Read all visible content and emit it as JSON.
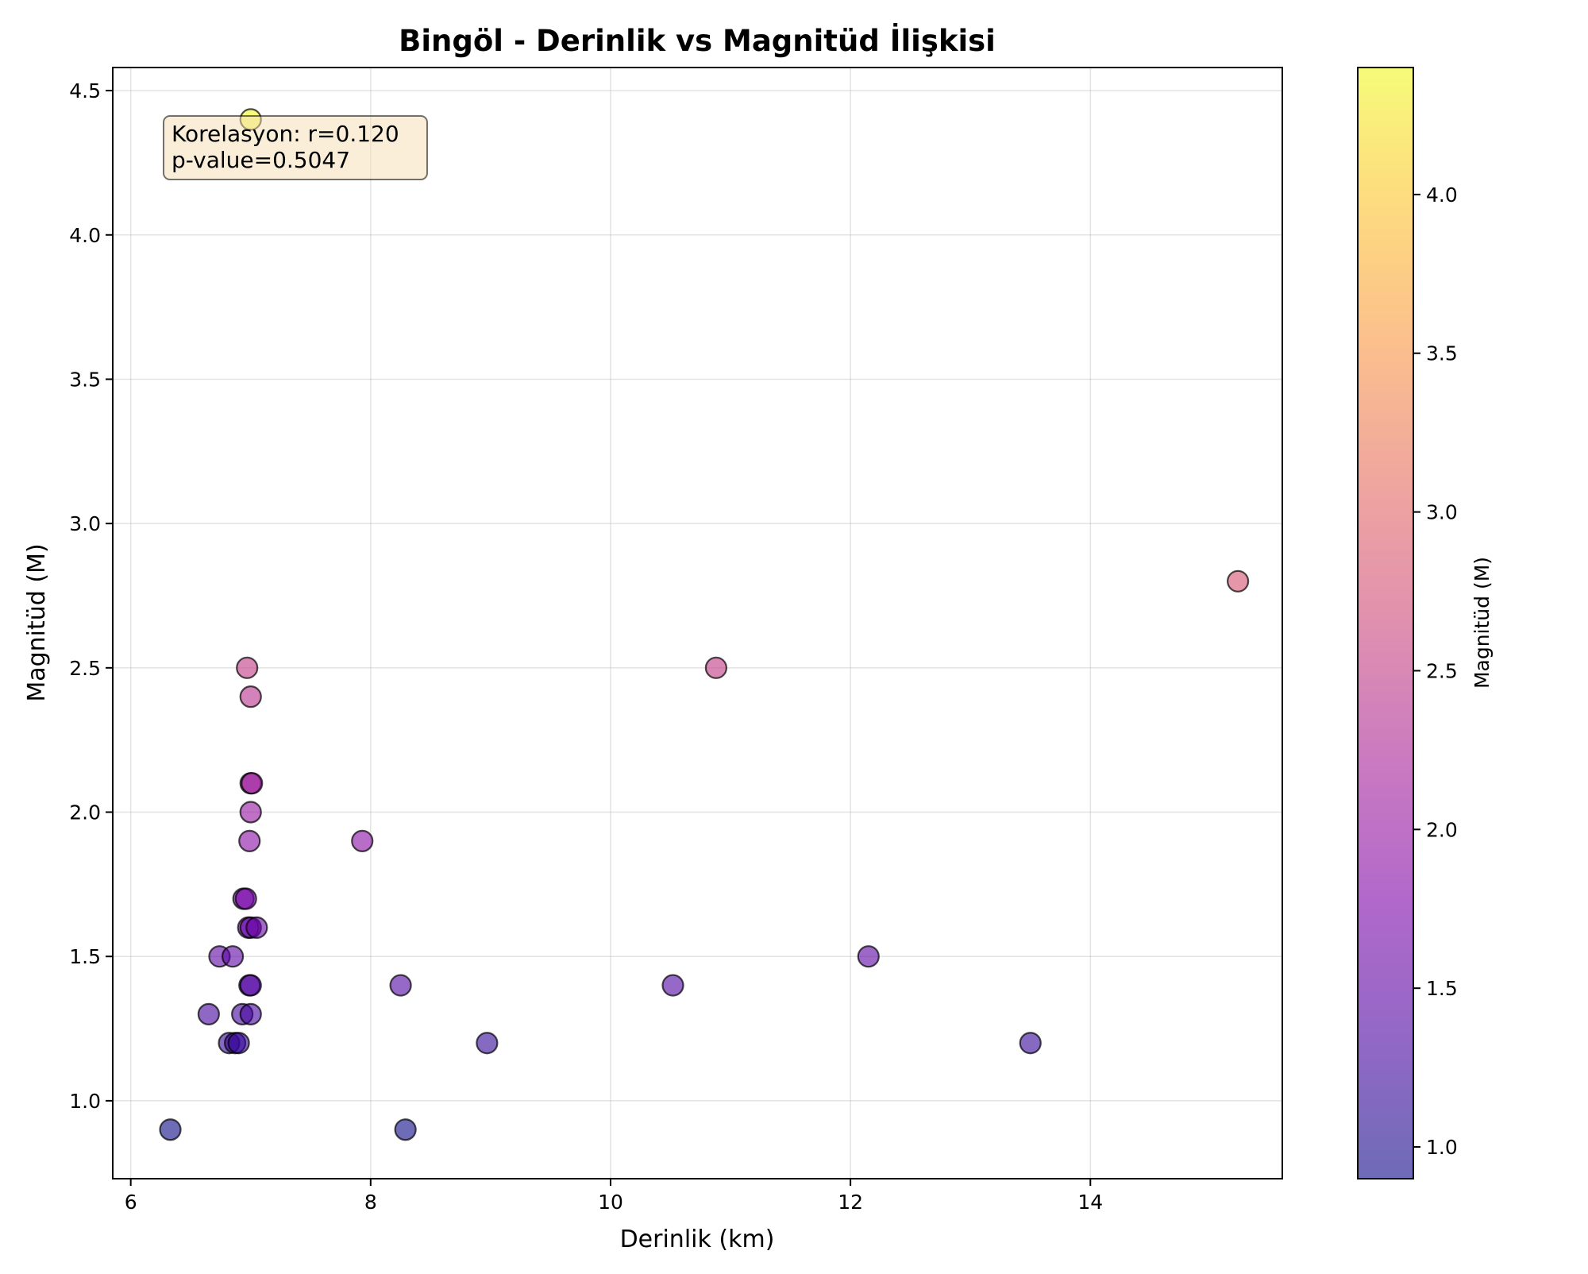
{
  "chart_data": {
    "type": "scatter",
    "title": "Bingöl - Derinlik vs Magnitüd İlişkisi",
    "xlabel": "Derinlik (km)",
    "ylabel": "Magnitüd (M)",
    "xlim": [
      5.85,
      15.6
    ],
    "ylim": [
      0.73,
      4.58
    ],
    "xticks": [
      6,
      8,
      10,
      12,
      14
    ],
    "xtick_labels": [
      "6",
      "8",
      "10",
      "12",
      "14"
    ],
    "yticks": [
      1.0,
      1.5,
      2.0,
      2.5,
      3.0,
      3.5,
      4.0,
      4.5
    ],
    "ytick_labels": [
      "1.0",
      "1.5",
      "2.0",
      "2.5",
      "3.0",
      "3.5",
      "4.0",
      "4.5"
    ],
    "grid": true,
    "annotation": {
      "line1": "Korelasyon: r=0.120",
      "line2": "p-value=0.5047"
    },
    "colorbar": {
      "label": "Magnitüd (M)",
      "colormap": "plasma",
      "range": [
        0.9,
        4.4
      ],
      "ticks": [
        1.0,
        1.5,
        2.0,
        2.5,
        3.0,
        3.5,
        4.0
      ],
      "tick_labels": [
        "1.0",
        "1.5",
        "2.0",
        "2.5",
        "3.0",
        "3.5",
        "4.0"
      ]
    },
    "marker_edge_color": "#000000",
    "marker_alpha": 0.6,
    "points": [
      {
        "x": 7.0,
        "y": 4.4
      },
      {
        "x": 15.23,
        "y": 2.8
      },
      {
        "x": 6.97,
        "y": 2.5
      },
      {
        "x": 10.88,
        "y": 2.5
      },
      {
        "x": 7.0,
        "y": 2.4
      },
      {
        "x": 7.0,
        "y": 2.1
      },
      {
        "x": 7.01,
        "y": 2.1
      },
      {
        "x": 7.0,
        "y": 2.0
      },
      {
        "x": 6.99,
        "y": 1.9
      },
      {
        "x": 7.93,
        "y": 1.9
      },
      {
        "x": 6.94,
        "y": 1.7
      },
      {
        "x": 6.96,
        "y": 1.7
      },
      {
        "x": 6.98,
        "y": 1.6
      },
      {
        "x": 7.0,
        "y": 1.6
      },
      {
        "x": 7.05,
        "y": 1.6
      },
      {
        "x": 6.74,
        "y": 1.5
      },
      {
        "x": 6.85,
        "y": 1.5
      },
      {
        "x": 12.15,
        "y": 1.5
      },
      {
        "x": 6.99,
        "y": 1.4
      },
      {
        "x": 7.0,
        "y": 1.4
      },
      {
        "x": 8.25,
        "y": 1.4
      },
      {
        "x": 10.52,
        "y": 1.4
      },
      {
        "x": 6.65,
        "y": 1.3
      },
      {
        "x": 6.93,
        "y": 1.3
      },
      {
        "x": 7.0,
        "y": 1.3
      },
      {
        "x": 6.82,
        "y": 1.2
      },
      {
        "x": 6.87,
        "y": 1.2
      },
      {
        "x": 6.9,
        "y": 1.2
      },
      {
        "x": 8.97,
        "y": 1.2
      },
      {
        "x": 13.5,
        "y": 1.2
      },
      {
        "x": 6.33,
        "y": 0.9
      },
      {
        "x": 8.29,
        "y": 0.9
      }
    ]
  }
}
